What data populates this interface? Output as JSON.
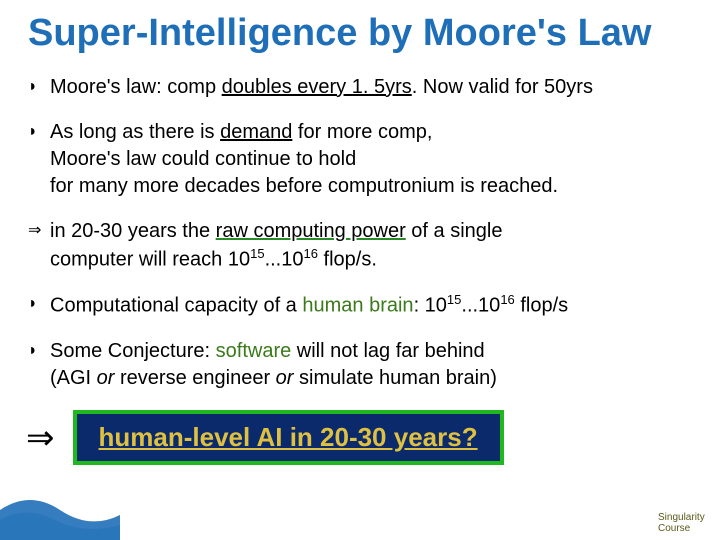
{
  "title": "Super-Intelligence by Moore's Law",
  "title_color": "#1f6fb8",
  "title_fontsize": 38,
  "body_fontsize": 20,
  "background_color": "#ffffff",
  "bullets": [
    {
      "marker": "◗",
      "parts": [
        {
          "t": "Moore's law: comp ",
          "style": ""
        },
        {
          "t": "doubles every 1. 5yrs",
          "style": "underline"
        },
        {
          "t": ". Now valid for 50yrs",
          "style": ""
        }
      ]
    },
    {
      "marker": "◗",
      "parts": [
        {
          "t": "As long as there is ",
          "style": ""
        },
        {
          "t": "demand",
          "style": "underline"
        },
        {
          "t": " for more comp,\nMoore's law could continue to hold\nfor many more decades before computronium is reached.",
          "style": ""
        }
      ]
    },
    {
      "marker": "⇒",
      "parts": [
        {
          "t": "in 20-30 years the ",
          "style": ""
        },
        {
          "t": "raw computing power",
          "style": "green-u"
        },
        {
          "t": " of a single\ncomputer will reach 10",
          "style": ""
        },
        {
          "t": "15",
          "style": "sup"
        },
        {
          "t": "...10",
          "style": ""
        },
        {
          "t": "16",
          "style": "sup"
        },
        {
          "t": " flop/s.",
          "style": ""
        }
      ]
    },
    {
      "marker": "◗",
      "parts": [
        {
          "t": "Computational capacity of a ",
          "style": ""
        },
        {
          "t": "human brain",
          "style": "greenish"
        },
        {
          "t": ": 10",
          "style": ""
        },
        {
          "t": "15",
          "style": "sup"
        },
        {
          "t": "...10",
          "style": ""
        },
        {
          "t": "16",
          "style": "sup"
        },
        {
          "t": " flop/s",
          "style": ""
        }
      ]
    },
    {
      "marker": "◗",
      "parts": [
        {
          "t": "Some Conjecture: ",
          "style": ""
        },
        {
          "t": "software",
          "style": "greenish"
        },
        {
          "t": " will not lag far behind\n(AGI ",
          "style": ""
        },
        {
          "t": "or",
          "style": "italic"
        },
        {
          "t": " reverse engineer ",
          "style": ""
        },
        {
          "t": "or",
          "style": "italic"
        },
        {
          "t": " simulate human brain)",
          "style": ""
        }
      ]
    }
  ],
  "conclusion": {
    "arrow": "⇒",
    "text": "human-level AI in 20-30 years?",
    "box_bg": "#0a2a6b",
    "box_border": "#1fb81f",
    "text_color": "#e0c040",
    "fontsize": 26
  },
  "footer": "Singularity Course",
  "wave_color": "#1f6fb8"
}
